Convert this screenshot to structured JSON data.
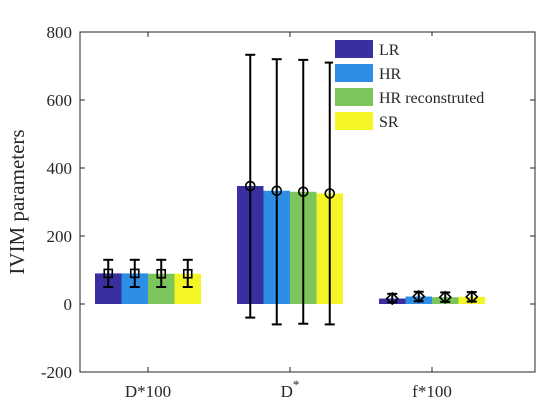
{
  "chart_data": {
    "type": "bar",
    "ylabel": "IVIM parameters",
    "ylim": [
      -200,
      800
    ],
    "yticks": [
      -200,
      0,
      200,
      400,
      600,
      800
    ],
    "grid": false,
    "legend_position": "top-right",
    "categories": [
      {
        "base": "D*100",
        "sup": ""
      },
      {
        "base": "D",
        "sup": "*"
      },
      {
        "base": "f*100",
        "sup": ""
      }
    ],
    "series": [
      {
        "name": "LR",
        "color": "#3a2fa0",
        "values": [
          90,
          347,
          16
        ],
        "error_low": [
          50,
          -40,
          5
        ],
        "error_high": [
          130,
          733,
          30
        ]
      },
      {
        "name": "HR",
        "color": "#2e8ee6",
        "values": [
          90,
          333,
          22
        ],
        "error_low": [
          50,
          -60,
          8
        ],
        "error_high": [
          130,
          720,
          36
        ]
      },
      {
        "name": "HR reconstruted",
        "color": "#7bc55a",
        "values": [
          89,
          330,
          20
        ],
        "error_low": [
          50,
          -58,
          6
        ],
        "error_high": [
          130,
          718,
          34
        ]
      },
      {
        "name": "SR",
        "color": "#f5f526",
        "values": [
          89,
          325,
          21
        ],
        "error_low": [
          50,
          -60,
          7
        ],
        "error_high": [
          130,
          710,
          35
        ]
      }
    ],
    "markers": [
      "square",
      "circle",
      "diamond"
    ]
  }
}
